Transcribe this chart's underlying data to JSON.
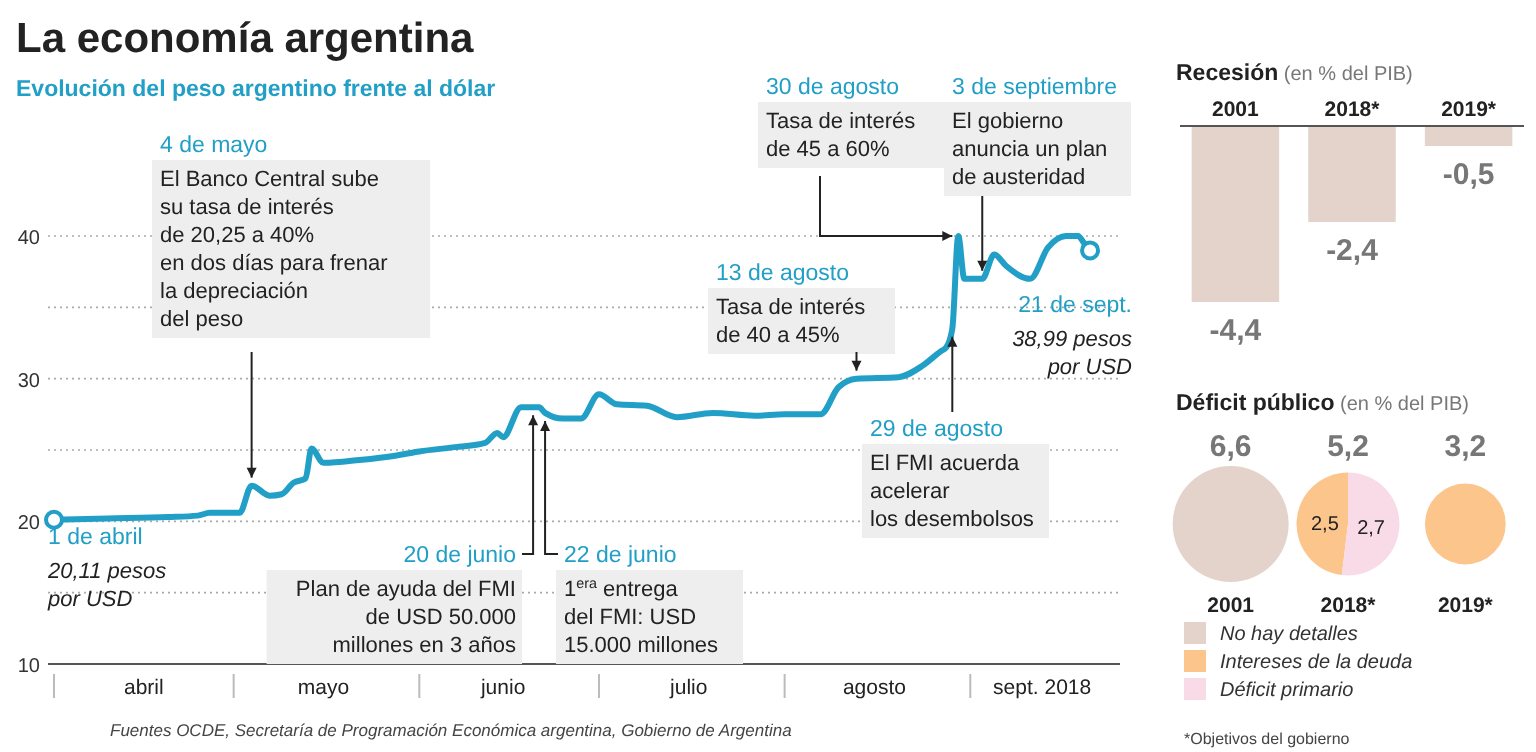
{
  "chart_data": [
    {
      "type": "line",
      "title": "La economía argentina",
      "subtitle": "Evolución del peso argentino frente al dólar",
      "x": [
        "2018-04-01",
        "2018-04-10",
        "2018-04-20",
        "2018-04-25",
        "2018-04-27",
        "2018-05-02",
        "2018-05-04",
        "2018-05-07",
        "2018-05-09",
        "2018-05-11",
        "2018-05-13",
        "2018-05-14",
        "2018-05-16",
        "2018-05-22",
        "2018-05-28",
        "2018-06-01",
        "2018-06-07",
        "2018-06-12",
        "2018-06-14",
        "2018-06-15",
        "2018-06-18",
        "2018-06-21",
        "2018-06-22",
        "2018-06-25",
        "2018-06-28",
        "2018-07-01",
        "2018-07-04",
        "2018-07-09",
        "2018-07-14",
        "2018-07-20",
        "2018-07-27",
        "2018-08-01",
        "2018-08-07",
        "2018-08-10",
        "2018-08-13",
        "2018-08-20",
        "2018-08-24",
        "2018-08-27",
        "2018-08-28",
        "2018-08-29",
        "2018-08-30",
        "2018-08-31",
        "2018-09-03",
        "2018-09-05",
        "2018-09-07",
        "2018-09-11",
        "2018-09-14",
        "2018-09-17",
        "2018-09-19",
        "2018-09-20",
        "2018-09-21"
      ],
      "series": [
        {
          "color": "#229fc6",
          "values": [
            20.11,
            20.2,
            20.3,
            20.4,
            20.6,
            20.6,
            22.5,
            21.8,
            21.9,
            22.7,
            23.0,
            25.1,
            24.1,
            24.3,
            24.6,
            24.9,
            25.2,
            25.5,
            26.2,
            25.9,
            28.0,
            28.0,
            27.6,
            27.2,
            27.2,
            28.9,
            28.2,
            28.1,
            27.3,
            27.6,
            27.4,
            27.5,
            27.5,
            29.4,
            30.0,
            30.1,
            30.9,
            31.9,
            32.2,
            33.5,
            40.0,
            37.0,
            37.0,
            38.7,
            37.9,
            37.0,
            39.2,
            40.0,
            40.0,
            39.5,
            38.99
          ]
        }
      ],
      "xlim": [
        "2018-03-31",
        "2018-09-26"
      ],
      "xticks": [
        {
          "value": "2018-04-01",
          "label": null
        },
        {
          "value": "2018-04-16",
          "label": "abril"
        },
        {
          "value": "2018-05-01",
          "label": null
        },
        {
          "value": "2018-05-16",
          "label": "mayo"
        },
        {
          "value": "2018-06-01",
          "label": null
        },
        {
          "value": "2018-06-15",
          "label": "junio"
        },
        {
          "value": "2018-07-01",
          "label": null
        },
        {
          "value": "2018-07-16",
          "label": "julio"
        },
        {
          "value": "2018-08-01",
          "label": null
        },
        {
          "value": "2018-08-16",
          "label": "agosto"
        },
        {
          "value": "2018-09-01",
          "label": null
        },
        {
          "value": "2018-09-13",
          "label": "sept. 2018"
        }
      ],
      "ylim": [
        10,
        40
      ],
      "yticks": [
        10,
        {
          "value": 15,
          "label": null
        },
        20,
        {
          "value": 25,
          "label": null
        },
        30,
        {
          "value": 35,
          "label": null
        },
        40
      ],
      "grid": "y",
      "line_style": "solid",
      "annotations": [
        {
          "text": "1 de abril\n20,11 pesos\npor USD",
          "x": "2018-04-01",
          "y": 20.11
        },
        {
          "text": "4 de mayo\nEl Banco Central sube\nsu tasa de interés\nde 20,25 a 40%\nen dos días para frenar\nla depreciación\ndel peso",
          "x": "2018-05-04",
          "y": 22.5
        },
        {
          "text": "20 de junio\nPlan de ayuda del FMI\nde USD 50.000\nmillones en 3 años",
          "x": "2018-06-20",
          "y": 28.0
        },
        {
          "text": "22 de junio\n1$^{era}$ entrega\ndel FMI: USD\n15.000 millones",
          "x": "2018-06-22",
          "y": 27.6
        },
        {
          "text": "13 de agosto\nTasa de interés\nde 40 a 45%",
          "x": "2018-08-13",
          "y": 30.0
        },
        {
          "text": "29 de agosto\nEl FMI acuerda\nacelerar\nlos desembolsos",
          "x": "2018-08-29",
          "y": 33.5
        },
        {
          "text": "30 de agosto\nTasa de interés\nde 45 a 60%",
          "x": "2018-08-30",
          "y": 40.0
        },
        {
          "text": "3 de septiembre\nEl gobierno\nanuncia un plan\nde austeridad",
          "x": "2018-09-03",
          "y": 37.0
        },
        {
          "text": "21 de sept.\n38,99 pesos\npor USD",
          "x": "2018-09-21",
          "y": 38.99
        },
        "Fuentes OCDE, Secretaría de Programación Económica argentina, Gobierno de Argentina"
      ]
    },
    {
      "type": "bar",
      "title": "Recesión",
      "subtitle": "(en % del PIB)",
      "categories": [
        "2001",
        "2018*",
        "2019*"
      ],
      "values": [
        -4.4,
        -2.4,
        -0.5
      ],
      "color": "#e3d3cb",
      "value_labels": [
        "-4,4",
        "-2,4",
        "-0,5"
      ]
    },
    {
      "type": "other",
      "title": "Déficit público",
      "subtitle": "(en % del PIB)",
      "categories": [
        "2001",
        "2018*",
        "2019*"
      ],
      "series": [
        {
          "name": "No hay detalles",
          "color": "#e3d3cb",
          "values": [
            6.6,
            null,
            null
          ],
          "value_labels": [
            "6,6",
            null,
            null
          ]
        },
        {
          "name": "Intereses de la deuda",
          "color": "#fbc58c",
          "values": [
            null,
            2.5,
            3.2
          ],
          "value_labels": [
            null,
            "2,5",
            "3,2"
          ]
        },
        {
          "name": "Déficit primario",
          "color": "#f8dbe7",
          "values": [
            null,
            2.7,
            null
          ],
          "value_labels": [
            null,
            "2,7",
            null
          ]
        }
      ],
      "totals": [
        null,
        "5,2",
        null
      ],
      "legend": "bottom",
      "annotations": [
        "*Objetivos del gobierno"
      ]
    }
  ]
}
